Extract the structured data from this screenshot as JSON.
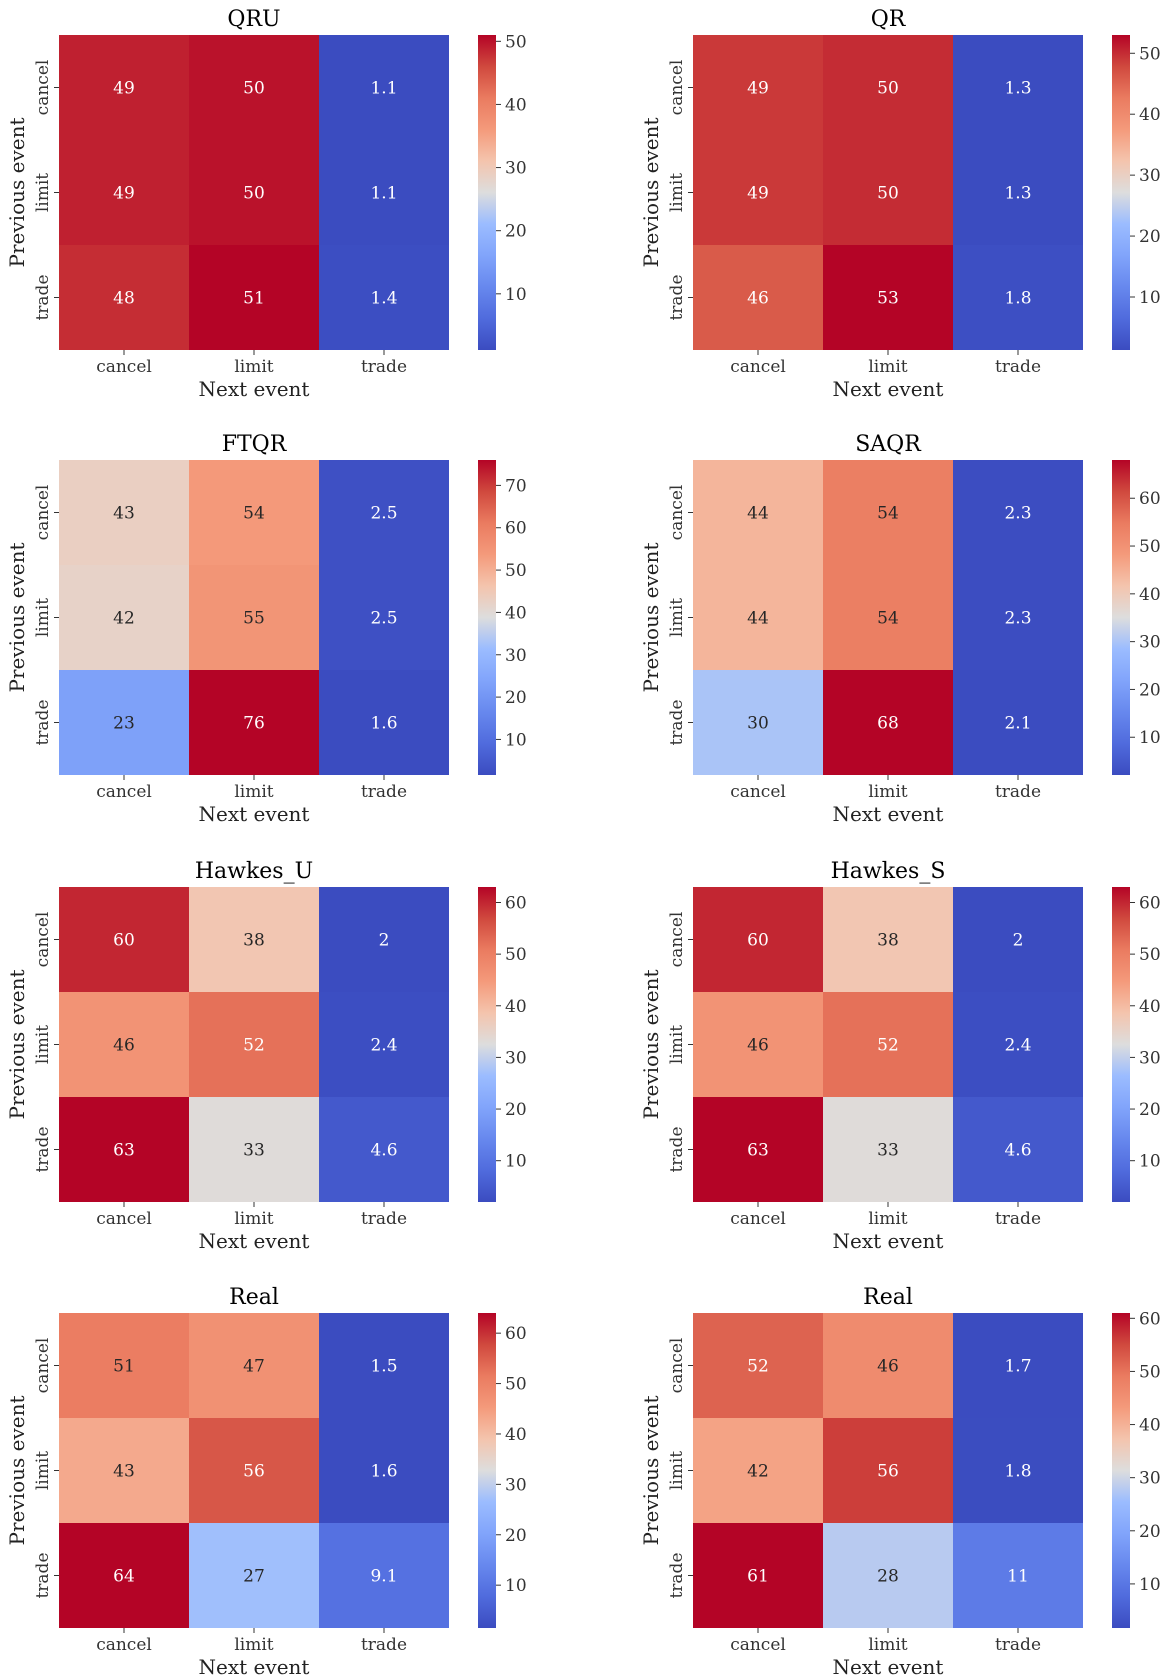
{
  "chart_data": [
    {
      "type": "heatmap",
      "title": "QRU",
      "xlabel": "Next event",
      "ylabel": "Previous event",
      "x_categories": [
        "cancel",
        "limit",
        "trade"
      ],
      "y_categories": [
        "cancel",
        "limit",
        "trade"
      ],
      "values": [
        [
          49,
          50,
          1.1
        ],
        [
          49,
          50,
          1.1
        ],
        [
          48,
          51,
          1.4
        ]
      ],
      "labels": [
        [
          "49",
          "50",
          "1.1"
        ],
        [
          "49",
          "50",
          "1.1"
        ],
        [
          "48",
          "51",
          "1.4"
        ]
      ],
      "colorbar": {
        "range": [
          1.1,
          51
        ],
        "ticks": [
          10,
          20,
          30,
          40,
          50
        ]
      },
      "colormap": "coolwarm"
    },
    {
      "type": "heatmap",
      "title": "QR",
      "xlabel": "Next event",
      "ylabel": "Previous event",
      "x_categories": [
        "cancel",
        "limit",
        "trade"
      ],
      "y_categories": [
        "cancel",
        "limit",
        "trade"
      ],
      "values": [
        [
          49,
          50,
          1.3
        ],
        [
          49,
          50,
          1.3
        ],
        [
          46,
          53,
          1.8
        ]
      ],
      "labels": [
        [
          "49",
          "50",
          "1.3"
        ],
        [
          "49",
          "50",
          "1.3"
        ],
        [
          "46",
          "53",
          "1.8"
        ]
      ],
      "colorbar": {
        "range": [
          1.3,
          53
        ],
        "ticks": [
          10,
          20,
          30,
          40,
          50
        ]
      },
      "colormap": "coolwarm"
    },
    {
      "type": "heatmap",
      "title": "FTQR",
      "xlabel": "Next event",
      "ylabel": "Previous event",
      "x_categories": [
        "cancel",
        "limit",
        "trade"
      ],
      "y_categories": [
        "cancel",
        "limit",
        "trade"
      ],
      "values": [
        [
          43,
          54,
          2.5
        ],
        [
          42,
          55,
          2.5
        ],
        [
          23,
          76,
          1.6
        ]
      ],
      "labels": [
        [
          "43",
          "54",
          "2.5"
        ],
        [
          "42",
          "55",
          "2.5"
        ],
        [
          "23",
          "76",
          "1.6"
        ]
      ],
      "colorbar": {
        "range": [
          1.6,
          76
        ],
        "ticks": [
          10,
          20,
          30,
          40,
          50,
          60,
          70
        ]
      },
      "colormap": "coolwarm"
    },
    {
      "type": "heatmap",
      "title": "SAQR",
      "xlabel": "Next event",
      "ylabel": "Previous event",
      "x_categories": [
        "cancel",
        "limit",
        "trade"
      ],
      "y_categories": [
        "cancel",
        "limit",
        "trade"
      ],
      "values": [
        [
          44,
          54,
          2.3
        ],
        [
          44,
          54,
          2.3
        ],
        [
          30,
          68,
          2.1
        ]
      ],
      "labels": [
        [
          "44",
          "54",
          "2.3"
        ],
        [
          "44",
          "54",
          "2.3"
        ],
        [
          "30",
          "68",
          "2.1"
        ]
      ],
      "colorbar": {
        "range": [
          2.1,
          68
        ],
        "ticks": [
          10,
          20,
          30,
          40,
          50,
          60
        ]
      },
      "colormap": "coolwarm"
    },
    {
      "type": "heatmap",
      "title": "Hawkes_U",
      "xlabel": "Next event",
      "ylabel": "Previous event",
      "x_categories": [
        "cancel",
        "limit",
        "trade"
      ],
      "y_categories": [
        "cancel",
        "limit",
        "trade"
      ],
      "values": [
        [
          60,
          38,
          2
        ],
        [
          46,
          52,
          2.4
        ],
        [
          63,
          33,
          4.6
        ]
      ],
      "labels": [
        [
          "60",
          "38",
          "2"
        ],
        [
          "46",
          "52",
          "2.4"
        ],
        [
          "63",
          "33",
          "4.6"
        ]
      ],
      "colorbar": {
        "range": [
          2,
          63
        ],
        "ticks": [
          10,
          20,
          30,
          40,
          50,
          60
        ]
      },
      "colormap": "coolwarm"
    },
    {
      "type": "heatmap",
      "title": "Hawkes_S",
      "xlabel": "Next event",
      "ylabel": "Previous event",
      "x_categories": [
        "cancel",
        "limit",
        "trade"
      ],
      "y_categories": [
        "cancel",
        "limit",
        "trade"
      ],
      "values": [
        [
          60,
          38,
          2
        ],
        [
          46,
          52,
          2.4
        ],
        [
          63,
          33,
          4.6
        ]
      ],
      "labels": [
        [
          "60",
          "38",
          "2"
        ],
        [
          "46",
          "52",
          "2.4"
        ],
        [
          "63",
          "33",
          "4.6"
        ]
      ],
      "colorbar": {
        "range": [
          2,
          63
        ],
        "ticks": [
          10,
          20,
          30,
          40,
          50,
          60
        ]
      },
      "colormap": "coolwarm"
    },
    {
      "type": "heatmap",
      "title": "Real",
      "xlabel": "Next event",
      "ylabel": "Previous event",
      "x_categories": [
        "cancel",
        "limit",
        "trade"
      ],
      "y_categories": [
        "cancel",
        "limit",
        "trade"
      ],
      "values": [
        [
          51,
          47,
          1.5
        ],
        [
          43,
          56,
          1.6
        ],
        [
          64,
          27,
          9.1
        ]
      ],
      "labels": [
        [
          "51",
          "47",
          "1.5"
        ],
        [
          "43",
          "56",
          "1.6"
        ],
        [
          "64",
          "27",
          "9.1"
        ]
      ],
      "colorbar": {
        "range": [
          1.5,
          64
        ],
        "ticks": [
          10,
          20,
          30,
          40,
          50,
          60
        ]
      },
      "colormap": "coolwarm"
    },
    {
      "type": "heatmap",
      "title": "Real",
      "xlabel": "Next event",
      "ylabel": "Previous event",
      "x_categories": [
        "cancel",
        "limit",
        "trade"
      ],
      "y_categories": [
        "cancel",
        "limit",
        "trade"
      ],
      "values": [
        [
          52,
          46,
          1.7
        ],
        [
          42,
          56,
          1.8
        ],
        [
          61,
          28,
          11
        ]
      ],
      "labels": [
        [
          "52",
          "46",
          "1.7"
        ],
        [
          "42",
          "56",
          "1.8"
        ],
        [
          "61",
          "28",
          "11"
        ]
      ],
      "colorbar": {
        "range": [
          1.7,
          61
        ],
        "ticks": [
          10,
          20,
          30,
          40,
          50,
          60
        ]
      },
      "colormap": "coolwarm"
    }
  ]
}
